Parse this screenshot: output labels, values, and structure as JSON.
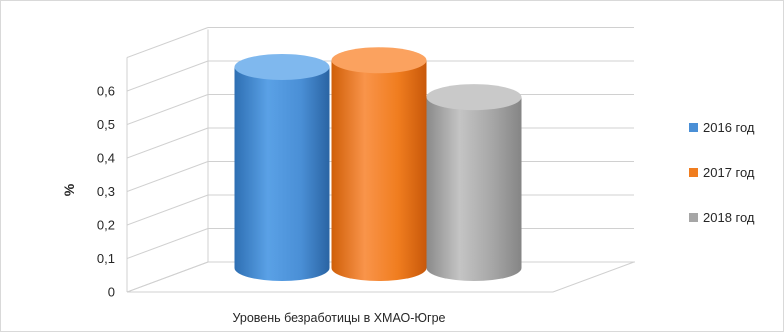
{
  "chart_data": {
    "type": "bar",
    "title": "",
    "xlabel": "",
    "ylabel": "%",
    "ylim": [
      0,
      0.6
    ],
    "yticks": [
      "0",
      "0,1",
      "0,2",
      "0,3",
      "0,4",
      "0,5",
      "0,6"
    ],
    "categories": [
      "Уровень безработицы в ХМАО-Югре"
    ],
    "series": [
      {
        "name": "2016 год",
        "values": [
          0.6
        ],
        "color": "#4a8fd6"
      },
      {
        "name": "2017 год",
        "values": [
          0.62
        ],
        "color": "#f07d1f"
      },
      {
        "name": "2018 год",
        "values": [
          0.51
        ],
        "color": "#a6a6a6"
      }
    ],
    "grid": true,
    "legend_position": "right",
    "style": "3d-cylinder"
  }
}
